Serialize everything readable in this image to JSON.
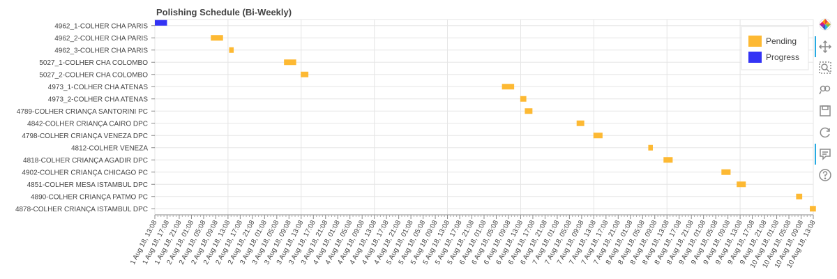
{
  "chart_data": {
    "type": "gantt",
    "title": "Polishing Schedule (Bi-Weekly)",
    "xlabel": "",
    "ylabel": "",
    "x_axis": {
      "start": "2018-08-01T13:08",
      "end": "2018-08-10T13:08",
      "tick_interval_hours": 4,
      "tick_labels": [
        "1 Aug 18, 13:08",
        "1 Aug 18, 17:08",
        "1 Aug 18, 21:08",
        "2 Aug 18, 01:08",
        "2 Aug 18, 05:08",
        "2 Aug 18, 09:08",
        "2 Aug 18, 13:08",
        "2 Aug 18, 17:08",
        "2 Aug 18, 21:08",
        "3 Aug 18, 01:08",
        "3 Aug 18, 05:08",
        "3 Aug 18, 09:08",
        "3 Aug 18, 13:08",
        "3 Aug 18, 17:08",
        "3 Aug 18, 21:08",
        "4 Aug 18, 01:08",
        "4 Aug 18, 05:08",
        "4 Aug 18, 09:08",
        "4 Aug 18, 13:08",
        "4 Aug 18, 17:08",
        "4 Aug 18, 21:08",
        "5 Aug 18, 01:08",
        "5 Aug 18, 05:08",
        "5 Aug 18, 09:08",
        "5 Aug 18, 13:08",
        "5 Aug 18, 17:08",
        "5 Aug 18, 21:08",
        "6 Aug 18, 01:08",
        "6 Aug 18, 05:08",
        "6 Aug 18, 09:08",
        "6 Aug 18, 13:08",
        "6 Aug 18, 17:08",
        "6 Aug 18, 21:08",
        "7 Aug 18, 01:08",
        "7 Aug 18, 05:08",
        "7 Aug 18, 09:08",
        "7 Aug 18, 13:08",
        "7 Aug 18, 17:08",
        "7 Aug 18, 21:08",
        "8 Aug 18, 01:08",
        "8 Aug 18, 05:08",
        "8 Aug 18, 09:08",
        "8 Aug 18, 13:08",
        "8 Aug 18, 17:08",
        "8 Aug 18, 21:08",
        "9 Aug 18, 01:08",
        "9 Aug 18, 05:08",
        "9 Aug 18, 09:08",
        "9 Aug 18, 13:08",
        "9 Aug 18, 17:08",
        "9 Aug 18, 21:08",
        "10 Aug 18, 01:08",
        "10 Aug 18, 05:08",
        "10 Aug 18, 09:08",
        "10 Aug 18, 13:08"
      ]
    },
    "legend": {
      "placement": "top-right",
      "entries": [
        {
          "name": "Pending",
          "color": "#FDB933"
        },
        {
          "name": "Progress",
          "color": "#3333F5"
        }
      ]
    },
    "grid": true,
    "tasks": [
      {
        "label": "4962_1-COLHER CHA PARIS",
        "start": "2018-08-01T13:08",
        "end": "2018-08-01T17:08",
        "status": "Progress"
      },
      {
        "label": "4962_2-COLHER CHA PARIS",
        "start": "2018-08-02T07:30",
        "end": "2018-08-02T11:30",
        "status": "Pending"
      },
      {
        "label": "4962_3-COLHER CHA PARIS",
        "start": "2018-08-02T13:30",
        "end": "2018-08-02T15:00",
        "status": "Pending"
      },
      {
        "label": "5027_1-COLHER CHA COLOMBO",
        "start": "2018-08-03T07:30",
        "end": "2018-08-03T11:30",
        "status": "Pending"
      },
      {
        "label": "5027_2-COLHER CHA COLOMBO",
        "start": "2018-08-03T13:00",
        "end": "2018-08-03T15:30",
        "status": "Pending"
      },
      {
        "label": "4973_1-COLHER CHA ATENAS",
        "start": "2018-08-06T07:00",
        "end": "2018-08-06T11:00",
        "status": "Pending"
      },
      {
        "label": "4973_2-COLHER CHA ATENAS",
        "start": "2018-08-06T13:00",
        "end": "2018-08-06T15:00",
        "status": "Pending"
      },
      {
        "label": "4789-COLHER CRIANÇA SANTORINI PC",
        "start": "2018-08-06T14:30",
        "end": "2018-08-06T17:00",
        "status": "Pending"
      },
      {
        "label": "4842-COLHER CRIANÇA CAIRO DPC",
        "start": "2018-08-07T07:30",
        "end": "2018-08-07T10:00",
        "status": "Pending"
      },
      {
        "label": "4798-COLHER CRIANÇA VENEZA DPC",
        "start": "2018-08-07T13:00",
        "end": "2018-08-07T16:00",
        "status": "Pending"
      },
      {
        "label": "4812-COLHER VENEZA",
        "start": "2018-08-08T07:00",
        "end": "2018-08-08T08:30",
        "status": "Pending"
      },
      {
        "label": "4818-COLHER CRIANÇA AGADIR DPC",
        "start": "2018-08-08T12:00",
        "end": "2018-08-08T15:00",
        "status": "Pending"
      },
      {
        "label": "4902-COLHER CRIANÇA CHICAGO PC",
        "start": "2018-08-09T07:00",
        "end": "2018-08-09T10:00",
        "status": "Pending"
      },
      {
        "label": "4851-COLHER MESA ISTAMBUL DPC",
        "start": "2018-08-09T12:00",
        "end": "2018-08-09T15:00",
        "status": "Pending"
      },
      {
        "label": "4890-COLHER CRIANÇA PATMO PC",
        "start": "2018-08-10T07:30",
        "end": "2018-08-10T09:30",
        "status": "Pending"
      },
      {
        "label": "4878-COLHER CRIANÇA ISTAMBUL DPC",
        "start": "2018-08-10T12:00",
        "end": "2018-08-10T14:00",
        "status": "Pending"
      }
    ]
  },
  "toolbar": {
    "tools": [
      {
        "icon": "bokeh-logo-icon",
        "active": false
      },
      {
        "icon": "pan-icon",
        "active": true
      },
      {
        "icon": "box-zoom-icon",
        "active": false
      },
      {
        "icon": "wheel-zoom-icon",
        "active": false
      },
      {
        "icon": "save-icon",
        "active": false
      },
      {
        "icon": "reset-icon",
        "active": false
      },
      {
        "icon": "hover-icon",
        "active": true
      },
      {
        "icon": "help-icon",
        "active": false
      }
    ]
  }
}
